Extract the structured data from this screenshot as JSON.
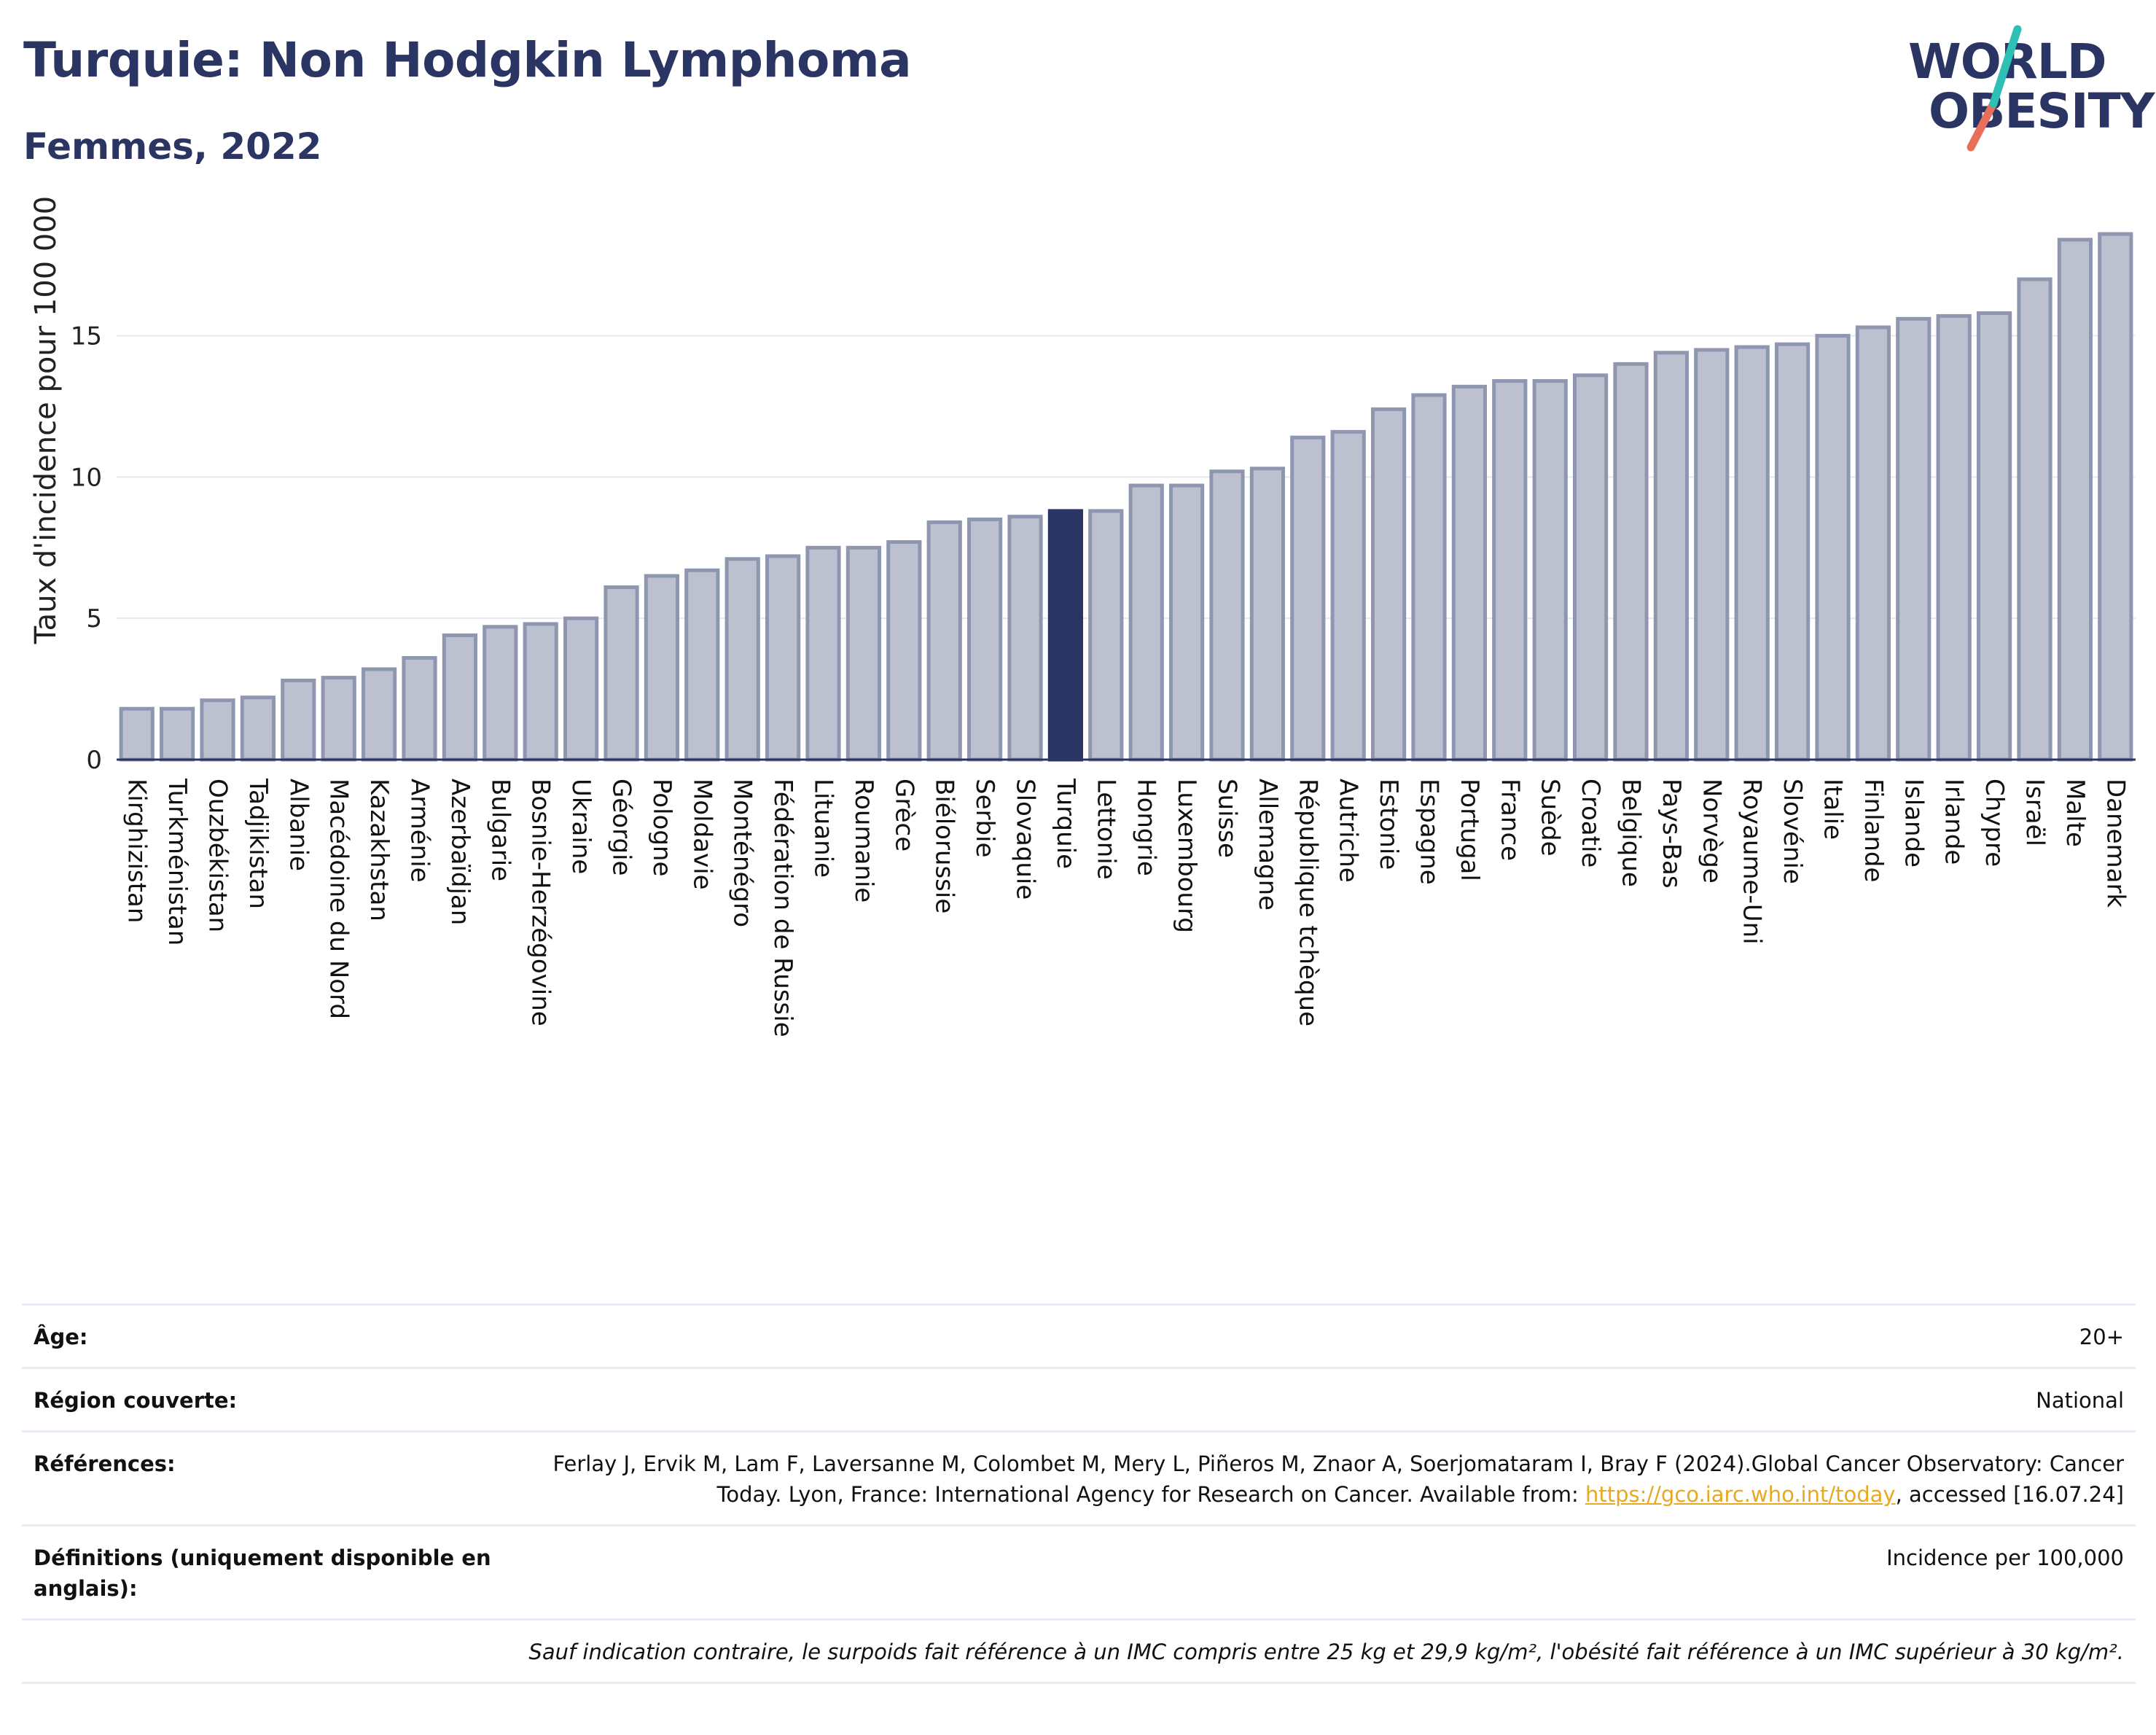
{
  "header": {
    "title": "Turquie: Non Hodgkin Lymphoma",
    "subtitle": "Femmes, 2022"
  },
  "logo": {
    "line1": "WORLD",
    "line2": "OBESITY"
  },
  "colors": {
    "primary": "#2b3563",
    "bar_default": "#bcc0cf",
    "bar_border": "#8f96b0",
    "bar_highlight": "#2b3563",
    "logo_teal": "#2ebfb5",
    "logo_coral": "#e8705a",
    "link": "#e8a921"
  },
  "chart_data": {
    "type": "bar",
    "title": "Turquie: Non Hodgkin Lymphoma",
    "subtitle": "Femmes, 2022",
    "xlabel": "",
    "ylabel": "Taux d'incidence pour 100 000",
    "ylim": [
      0,
      19.4
    ],
    "yticks": [
      0,
      5,
      10,
      15
    ],
    "grid": true,
    "highlight": "Turquie",
    "categories": [
      "Kirghizistan",
      "Turkménistan",
      "Ouzbékistan",
      "Tadjikistan",
      "Albanie",
      "Macédoine du Nord",
      "Kazakhstan",
      "Arménie",
      "Azerbaïdjan",
      "Bulgarie",
      "Bosnie-Herzégovine",
      "Ukraine",
      "Géorgie",
      "Pologne",
      "Moldavie",
      "Monténégro",
      "Fédération de Russie",
      "Lituanie",
      "Roumanie",
      "Grèce",
      "Biélorussie",
      "Serbie",
      "Slovaquie",
      "Turquie",
      "Lettonie",
      "Hongrie",
      "Luxembourg",
      "Suisse",
      "Allemagne",
      "République tchèque",
      "Autriche",
      "Estonie",
      "Espagne",
      "Portugal",
      "France",
      "Suède",
      "Croatie",
      "Belgique",
      "Pays-Bas",
      "Norvège",
      "Royaume-Uni",
      "Slovénie",
      "Italie",
      "Finlande",
      "Islande",
      "Irlande",
      "Chypre",
      "Israël",
      "Malte",
      "Danemark"
    ],
    "values": [
      1.8,
      1.8,
      2.1,
      2.2,
      2.8,
      2.9,
      3.2,
      3.6,
      4.4,
      4.7,
      4.8,
      5.0,
      6.1,
      6.5,
      6.7,
      7.1,
      7.2,
      7.5,
      7.5,
      7.7,
      8.4,
      8.5,
      8.6,
      8.8,
      8.8,
      9.7,
      9.7,
      10.2,
      10.3,
      11.4,
      11.6,
      12.4,
      12.9,
      13.2,
      13.4,
      13.4,
      13.6,
      14.0,
      14.4,
      14.5,
      14.6,
      14.7,
      15.0,
      15.3,
      15.6,
      15.7,
      15.8,
      17.0,
      18.4,
      18.6
    ]
  },
  "meta": {
    "age_label": "Âge:",
    "age_value": "20+",
    "region_label": "Région couverte:",
    "region_value": "National",
    "references_label": "Références:",
    "references_text": "Ferlay J, Ervik M, Lam F, Laversanne M, Colombet M, Mery L, Piñeros M, Znaor A, Soerjomataram I, Bray F (2024).Global Cancer Observatory: Cancer Today. Lyon, France: International Agency for Research on Cancer. Available from: ",
    "references_link": "https://gco.iarc.who.int/today",
    "references_suffix": ", accessed [16.07.24]",
    "definitions_label": "Définitions (uniquement disponible en anglais):",
    "definitions_value": "Incidence per 100,000",
    "note": "Sauf indication contraire, le surpoids fait référence à un IMC compris entre 25 kg et 29,9 kg/m², l'obésité fait référence à un IMC supérieur à 30 kg/m²."
  }
}
